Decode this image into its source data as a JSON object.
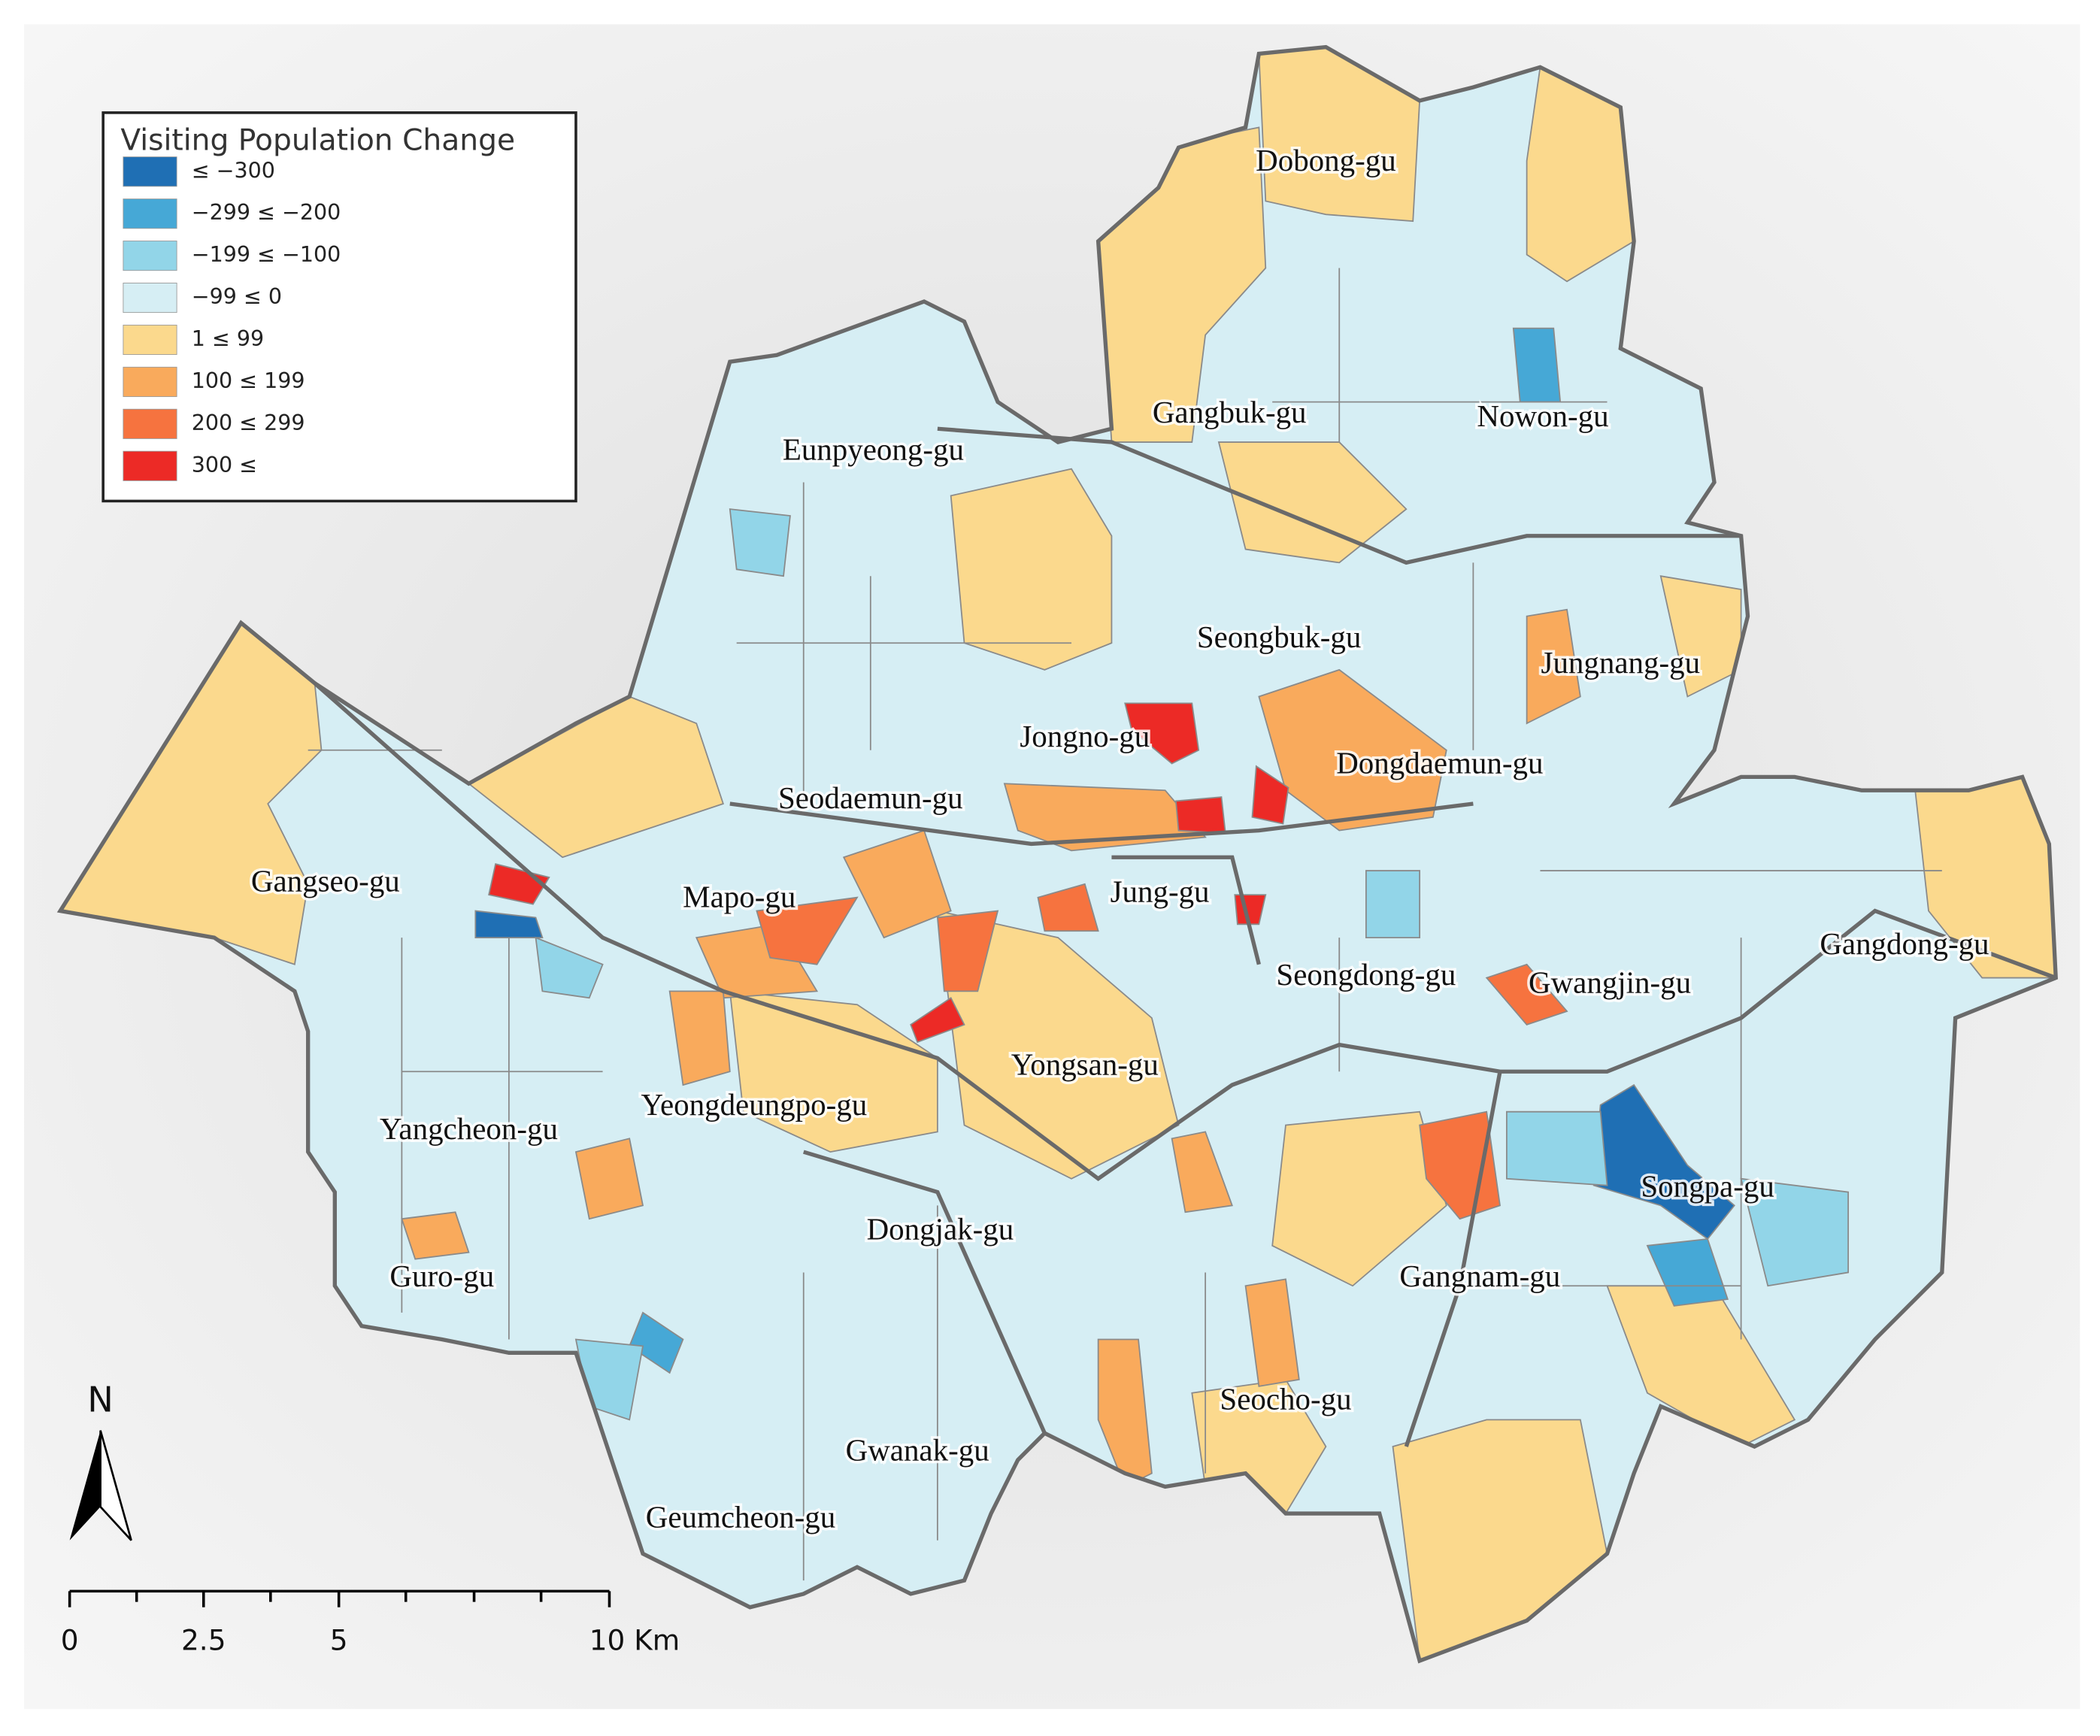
{
  "legend": {
    "title": "Visiting Population Change",
    "items": [
      {
        "label": "≤ −300",
        "color": "#1f6fb4"
      },
      {
        "label": "−299 ≤ −200",
        "color": "#46a8d6"
      },
      {
        "label": "−199 ≤ −100",
        "color": "#92d5e8"
      },
      {
        "label": "−99 ≤ 0",
        "color": "#d6eef4"
      },
      {
        "label": "1 ≤ 99",
        "color": "#fbd98d"
      },
      {
        "label": "100 ≤ 199",
        "color": "#f9aa5c"
      },
      {
        "label": "200 ≤ 299",
        "color": "#f6733f"
      },
      {
        "label": "300 ≤",
        "color": "#ec2a26"
      }
    ]
  },
  "districts": [
    "Dobong-gu",
    "Gangbuk-gu",
    "Nowon-gu",
    "Eunpyeong-gu",
    "Seongbuk-gu",
    "Jungnang-gu",
    "Jongno-gu",
    "Dongdaemun-gu",
    "Seodaemun-gu",
    "Gangseo-gu",
    "Mapo-gu",
    "Jung-gu",
    "Seongdong-gu",
    "Gwangjin-gu",
    "Gangdong-gu",
    "Yongsan-gu",
    "Yeongdeungpo-gu",
    "Yangcheon-gu",
    "Songpa-gu",
    "Dongjak-gu",
    "Gangnam-gu",
    "Guro-gu",
    "Seocho-gu",
    "Gwanak-gu",
    "Geumcheon-gu"
  ],
  "north_arrow": "N",
  "scale_bar": [
    "0",
    "2.5",
    "5",
    "10 Km"
  ]
}
